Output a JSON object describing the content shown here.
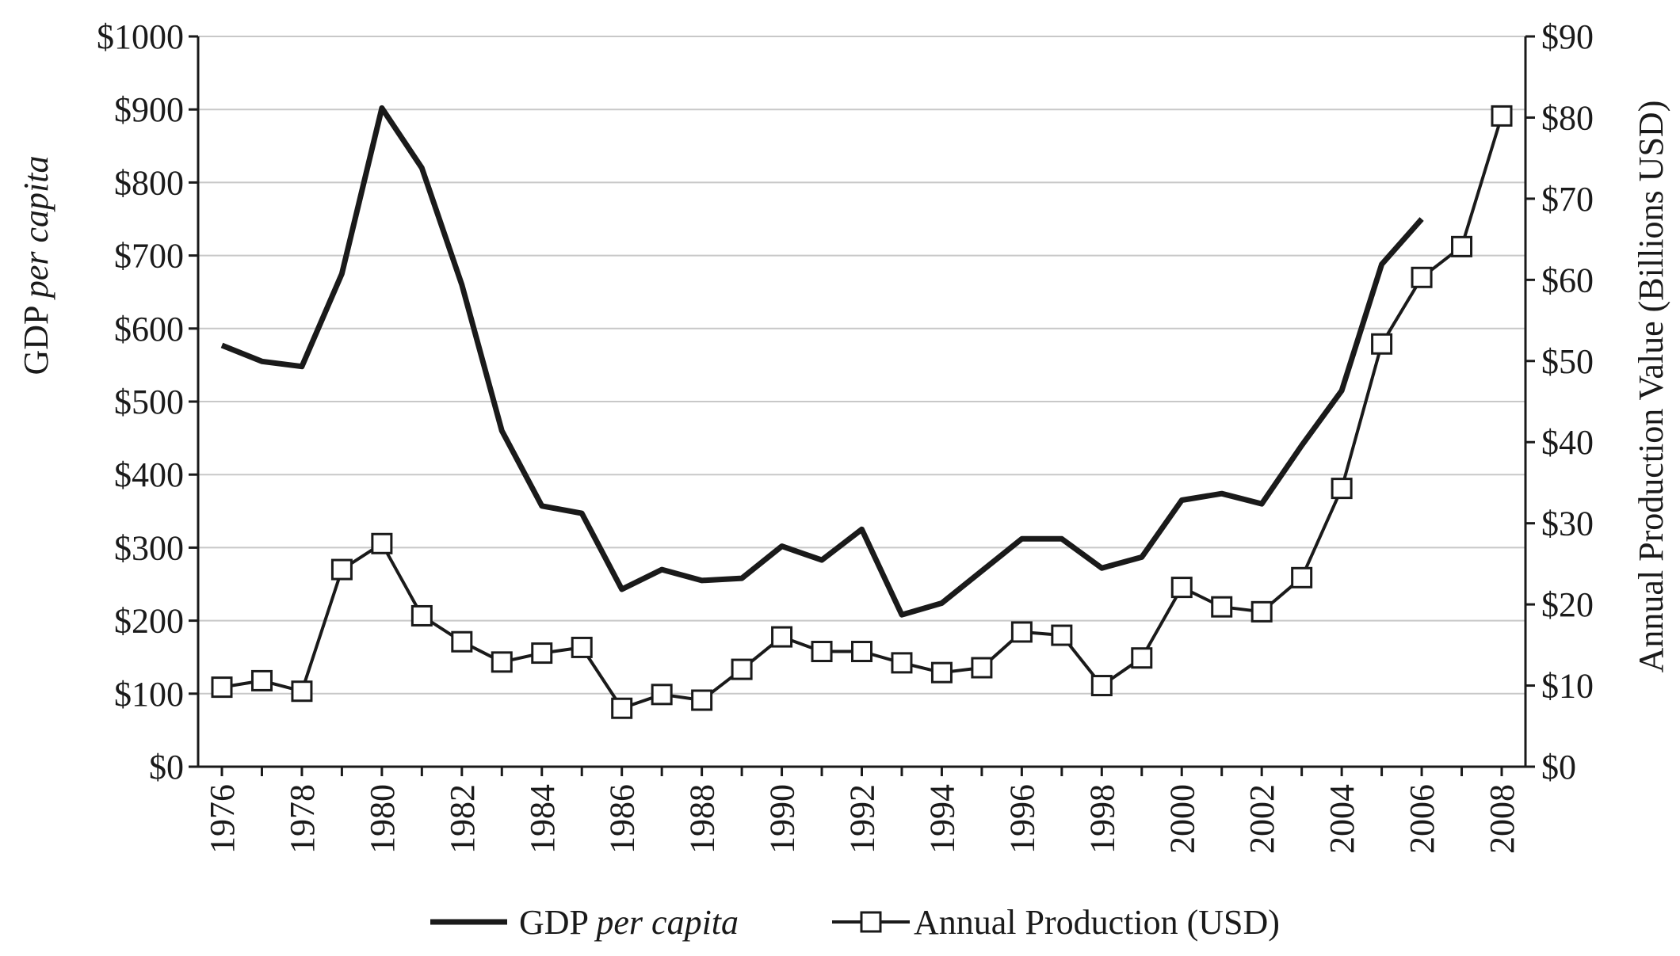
{
  "chart_data": {
    "type": "line",
    "title": "",
    "x": [
      1976,
      1977,
      1978,
      1979,
      1980,
      1981,
      1982,
      1983,
      1984,
      1985,
      1986,
      1987,
      1988,
      1989,
      1990,
      1991,
      1992,
      1993,
      1994,
      1995,
      1996,
      1997,
      1998,
      1999,
      2000,
      2001,
      2002,
      2003,
      2004,
      2005,
      2006,
      2007,
      2008
    ],
    "x_tick_labels": [
      "1976",
      "1978",
      "1980",
      "1982",
      "1984",
      "1986",
      "1988",
      "1990",
      "1992",
      "1994",
      "1996",
      "1998",
      "2000",
      "2002",
      "2004",
      "2006",
      "2008"
    ],
    "x_ticks": [
      1976,
      1978,
      1980,
      1982,
      1984,
      1986,
      1988,
      1990,
      1992,
      1994,
      1996,
      1998,
      2000,
      2002,
      2004,
      2006,
      2008
    ],
    "xlim": [
      1976,
      2008
    ],
    "y_left": {
      "label_prefix": "GDP ",
      "label_italic": "per capita",
      "lim": [
        0,
        1000
      ],
      "ticks": [
        0,
        100,
        200,
        300,
        400,
        500,
        600,
        700,
        800,
        900,
        1000
      ],
      "tick_labels": [
        "$0",
        "$100",
        "$200",
        "$300",
        "$400",
        "$500",
        "$600",
        "$700",
        "$800",
        "$900",
        "$1000"
      ]
    },
    "y_right": {
      "label": "Annual Production Value (Billions USD)",
      "lim": [
        0,
        90
      ],
      "ticks": [
        0,
        10,
        20,
        30,
        40,
        50,
        60,
        70,
        80,
        90
      ],
      "tick_labels": [
        "$0",
        "$10",
        "$20",
        "$30",
        "$40",
        "$50",
        "$60",
        "$70",
        "$80",
        "$90"
      ]
    },
    "grid": true,
    "legend_position": "bottom",
    "series": [
      {
        "name_prefix": "GDP ",
        "name_italic": "per capita",
        "axis": "left",
        "marker": "none",
        "color": "#1a1a1a",
        "values": [
          577,
          555,
          548,
          675,
          902,
          820,
          660,
          460,
          357,
          347,
          243,
          270,
          255,
          258,
          302,
          283,
          325,
          208,
          224,
          268,
          312,
          312,
          272,
          287,
          365,
          374,
          360,
          440,
          515,
          688,
          750,
          null,
          null
        ]
      },
      {
        "name": "Annual Production (USD)",
        "axis": "right",
        "marker": "square",
        "color": "#1a1a1a",
        "values": [
          9.8,
          10.6,
          9.3,
          24.3,
          27.5,
          18.6,
          15.4,
          12.9,
          14.0,
          14.7,
          7.2,
          8.9,
          8.2,
          12.0,
          16.0,
          14.2,
          14.2,
          12.8,
          11.6,
          12.2,
          16.6,
          16.2,
          10.0,
          13.4,
          22.1,
          19.7,
          19.1,
          23.3,
          34.3,
          52.1,
          60.3,
          64.1,
          80.2
        ]
      }
    ]
  }
}
